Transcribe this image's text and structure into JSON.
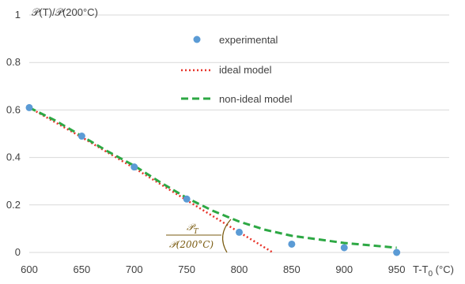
{
  "chart_data": {
    "type": "line",
    "ylabel": "𝒫(T)/𝒫(200°C)",
    "xlabel_main": "T-T",
    "xlabel_sub": "0",
    "xlabel_unit": " (°C)",
    "xlim": [
      600,
      1000
    ],
    "ylim": [
      0,
      1
    ],
    "xticks": [
      "600",
      "650",
      "700",
      "750",
      "800",
      "850",
      "900",
      "950"
    ],
    "yticks": [
      "0",
      "0.2",
      "0.4",
      "0.6",
      "0.8",
      "1"
    ],
    "grid": "horizontal",
    "legend_position": "top-center",
    "series": [
      {
        "name": "experimental",
        "kind": "scatter",
        "color": "#5b9bd5",
        "x": [
          600,
          650,
          700,
          750,
          800,
          850,
          900,
          950
        ],
        "y": [
          0.61,
          0.49,
          0.36,
          0.225,
          0.085,
          0.035,
          0.02,
          0.0
        ]
      },
      {
        "name": "ideal model",
        "kind": "line",
        "style": "dotted",
        "color": "#e8342a",
        "x": [
          600,
          650,
          700,
          750,
          800,
          832
        ],
        "y": [
          0.61,
          0.485,
          0.355,
          0.22,
          0.085,
          0.0
        ]
      },
      {
        "name": "non-ideal model",
        "kind": "line",
        "style": "dashed",
        "color": "#2da844",
        "x": [
          600,
          625,
          650,
          675,
          700,
          725,
          750,
          775,
          800,
          825,
          850,
          875,
          900,
          925,
          950
        ],
        "y": [
          0.61,
          0.555,
          0.49,
          0.425,
          0.365,
          0.295,
          0.23,
          0.175,
          0.13,
          0.095,
          0.07,
          0.055,
          0.04,
          0.03,
          0.02
        ]
      }
    ],
    "annotation": {
      "numerator_main": "𝒫",
      "numerator_sub": "T",
      "denominator": "𝒫(200°C)",
      "color": "#7a5b10"
    }
  }
}
